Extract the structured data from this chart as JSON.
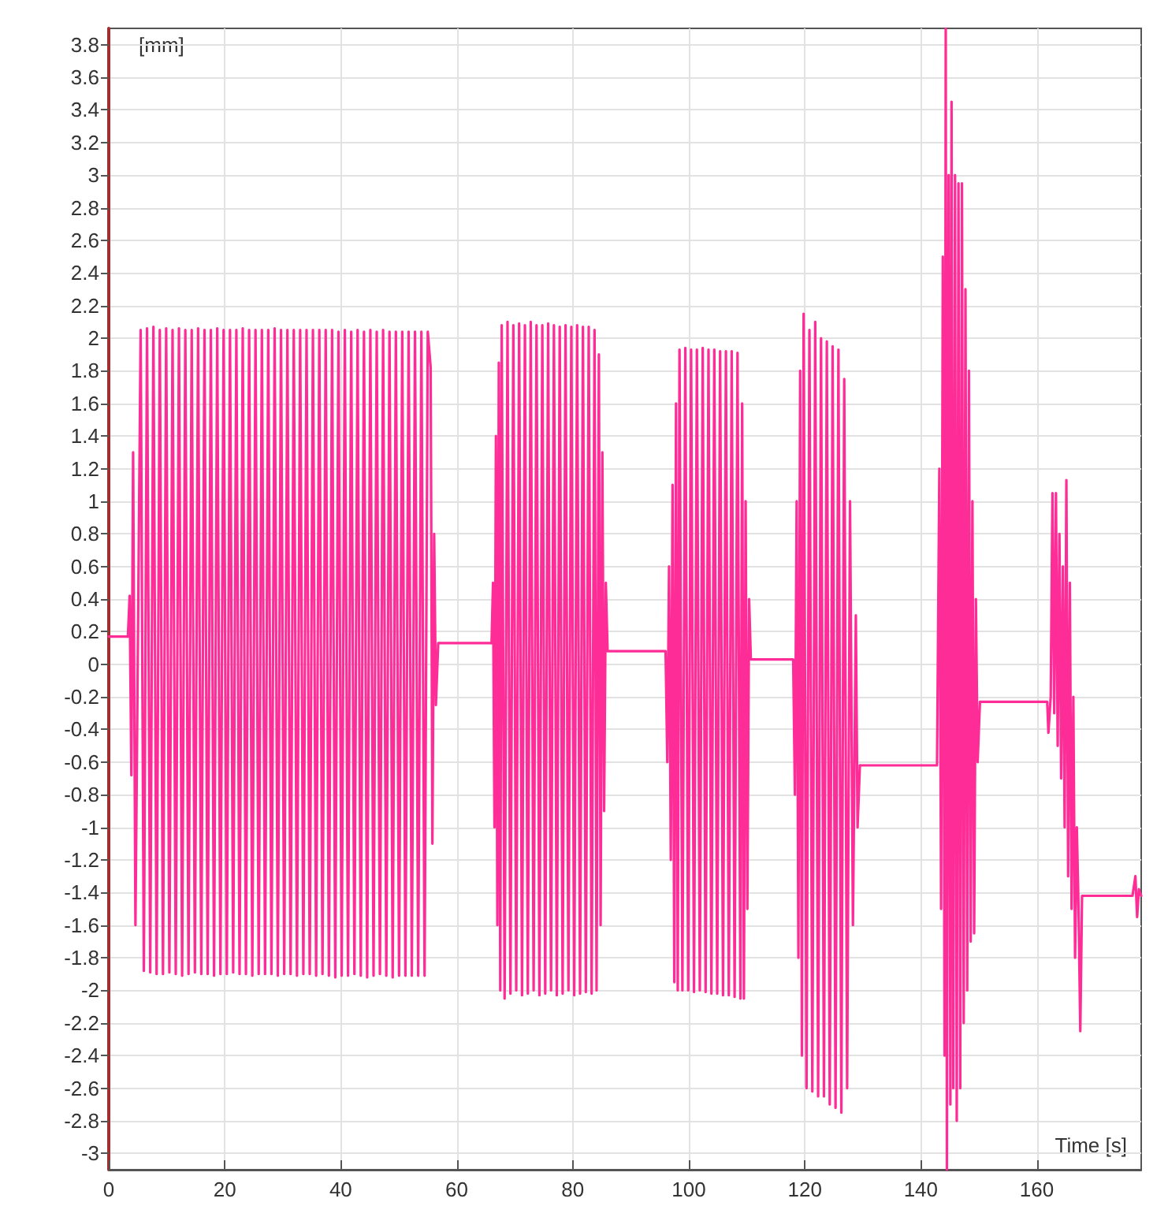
{
  "chart_data": {
    "type": "line",
    "xlabel": "Time [s]",
    "ylabel": "[mm]",
    "xlim": [
      0,
      178
    ],
    "xticks": [
      0,
      20,
      40,
      60,
      80,
      100,
      120,
      140,
      160
    ],
    "ylim": [
      -3.1,
      3.9
    ],
    "yticks": [
      -3,
      -2.8,
      -2.6,
      -2.4,
      -2.2,
      -2,
      -1.8,
      -1.6,
      -1.4,
      -1.2,
      -1,
      -0.8,
      -0.6,
      -0.4,
      -0.2,
      0,
      0.2,
      0.4,
      0.6,
      0.8,
      1,
      1.2,
      1.4,
      1.6,
      1.8,
      2,
      2.2,
      2.4,
      2.6,
      2.8,
      3,
      3.2,
      3.4,
      3.6,
      3.8
    ],
    "grid": true,
    "marker": "none",
    "line_style": "solid",
    "series": [
      {
        "color": "#fe2c96",
        "x": [
          0,
          3.3,
          3.6,
          3.9,
          4.2,
          4.6,
          5.5,
          6.05,
          6.6,
          7.15,
          7.7,
          8.25,
          8.8,
          9.35,
          9.9,
          10.45,
          11,
          11.55,
          12.1,
          12.65,
          13.2,
          13.75,
          14.3,
          14.85,
          15.4,
          15.95,
          16.5,
          17.05,
          17.6,
          18.15,
          18.7,
          19.25,
          19.8,
          20.35,
          20.9,
          21.45,
          22,
          22.55,
          23.1,
          23.65,
          24.2,
          24.75,
          25.3,
          25.85,
          26.4,
          26.95,
          27.5,
          28.05,
          28.6,
          29.15,
          29.7,
          30.25,
          30.8,
          31.35,
          31.9,
          32.45,
          33,
          33.55,
          34.1,
          34.65,
          35.2,
          35.75,
          36.3,
          36.85,
          37.4,
          37.95,
          38.5,
          39.05,
          39.6,
          40.15,
          40.7,
          41.25,
          41.8,
          42.35,
          42.9,
          43.45,
          44,
          44.55,
          45.1,
          45.65,
          46.2,
          46.75,
          47.3,
          47.85,
          48.4,
          48.95,
          49.5,
          50.05,
          50.6,
          51.15,
          51.7,
          52.25,
          52.8,
          53.35,
          53.9,
          54.45,
          55,
          55.5,
          55.8,
          56.1,
          56.4,
          56.8,
          66
        ],
        "values": [
          0.17,
          0.17,
          0.42,
          -0.68,
          1.3,
          -1.6,
          2.05,
          -1.88,
          2.06,
          -1.89,
          2.07,
          -1.9,
          2.05,
          -1.9,
          2.06,
          -1.89,
          2.05,
          -1.9,
          2.06,
          -1.91,
          2.05,
          -1.9,
          2.05,
          -1.89,
          2.06,
          -1.9,
          2.05,
          -1.9,
          2.05,
          -1.91,
          2.06,
          -1.9,
          2.05,
          -1.9,
          2.05,
          -1.89,
          2.05,
          -1.9,
          2.06,
          -1.9,
          2.05,
          -1.91,
          2.05,
          -1.9,
          2.05,
          -1.9,
          2.05,
          -1.9,
          2.06,
          -1.91,
          2.05,
          -1.9,
          2.05,
          -1.9,
          2.05,
          -1.91,
          2.05,
          -1.9,
          2.05,
          -1.9,
          2.05,
          -1.91,
          2.05,
          -1.9,
          2.05,
          -1.91,
          2.05,
          -1.92,
          2.04,
          -1.91,
          2.05,
          -1.91,
          2.04,
          -1.9,
          2.05,
          -1.91,
          2.04,
          -1.92,
          2.05,
          -1.91,
          2.04,
          -1.9,
          2.05,
          -1.91,
          2.04,
          -1.92,
          2.04,
          -1.91,
          2.04,
          -1.91,
          2.04,
          -1.91,
          2.04,
          -1.91,
          2.04,
          -1.91,
          2.04,
          1.82,
          -1.1,
          0.8,
          -0.25,
          0.13,
          0.13
        ]
      },
      {
        "color": "#fe2c96",
        "x": [
          66,
          66.25,
          66.5,
          66.75,
          67,
          67.25,
          67.5,
          67.75,
          68.25,
          68.75,
          69.25,
          69.75,
          70.25,
          70.75,
          71.25,
          71.75,
          72.25,
          72.75,
          73.25,
          73.75,
          74.25,
          74.75,
          75.25,
          75.75,
          76.25,
          76.75,
          77.25,
          77.75,
          78.25,
          78.75,
          79.25,
          79.75,
          80.25,
          80.75,
          81.25,
          81.75,
          82.25,
          82.75,
          83.25,
          83.75,
          84.1,
          84.5,
          84.8,
          85.1,
          85.4,
          85.7,
          86,
          96,
          96.3,
          96.6,
          96.9,
          97.2,
          97.5,
          97.8,
          98.1,
          98.4,
          98.9,
          99.4,
          99.9,
          100.4,
          100.9,
          101.4,
          101.9,
          102.4,
          102.9,
          103.4,
          103.9,
          104.4,
          104.9,
          105.4,
          105.9,
          106.4,
          106.9,
          107.4,
          107.9,
          108.4,
          108.9,
          109.2,
          109.5,
          109.8,
          110.1,
          110.4,
          110.7,
          118,
          118.3,
          118.6,
          118.9,
          119.2,
          119.5,
          119.8,
          120.3,
          120.8,
          121.3,
          121.8,
          122.3,
          122.8,
          123.3,
          123.8,
          124.3,
          124.8,
          125.3,
          125.8,
          126.3,
          126.8,
          127.3,
          127.8,
          128.3,
          128.8,
          129.1,
          129.5
        ],
        "values": [
          0.13,
          0.5,
          -1.0,
          1.4,
          -1.6,
          1.85,
          -2.0,
          2.08,
          -2.05,
          2.1,
          -2.02,
          2.08,
          -2.0,
          2.09,
          -2.03,
          2.08,
          -2.02,
          2.1,
          -2.0,
          2.08,
          -2.03,
          2.08,
          -2.02,
          2.09,
          -2.0,
          2.08,
          -2.03,
          2.07,
          -2.02,
          2.08,
          -2.0,
          2.07,
          -2.03,
          2.08,
          -2.02,
          2.07,
          -2.01,
          2.07,
          -2.02,
          2.05,
          -2.0,
          1.9,
          -1.6,
          1.3,
          -0.9,
          0.5,
          0.08,
          0.08,
          -0.6,
          0.6,
          -1.2,
          1.1,
          -1.95,
          1.6,
          -2.0,
          1.93,
          -2.0,
          1.94,
          -2.0,
          1.93,
          -2.01,
          1.93,
          -2.0,
          1.94,
          -2.01,
          1.93,
          -2.02,
          1.93,
          -2.02,
          1.92,
          -2.03,
          1.92,
          -2.03,
          1.92,
          -2.04,
          1.91,
          -2.05,
          1.6,
          -2.05,
          1.0,
          -1.5,
          0.4,
          0.03,
          0.03,
          -0.8,
          1.0,
          -1.8,
          1.8,
          -2.4,
          2.15,
          -2.6,
          2.05,
          -2.62,
          2.1,
          -2.65,
          2.0,
          -2.65,
          1.98,
          -2.7,
          1.95,
          -2.72,
          1.93,
          -2.75,
          1.75,
          -2.6,
          1.0,
          -1.6,
          0.3,
          -1.0,
          -0.62
        ]
      },
      {
        "color": "#fe2c96",
        "x": [
          129.5,
          142.8,
          143.2,
          143.5,
          143.8,
          144.1,
          144.3,
          144.5,
          144.8,
          145.1,
          145.3,
          145.6,
          145.9,
          146.2,
          146.5,
          146.8,
          147.1,
          147.4,
          147.7,
          148,
          148.3,
          148.6,
          148.9,
          149.2,
          149.5,
          149.8,
          150.2,
          161.8,
          162,
          162.4,
          162.7,
          163,
          163.3,
          163.6,
          163.9,
          164.2,
          164.5,
          164.8,
          165.1,
          165.4,
          165.7,
          166,
          166.3,
          166.6,
          166.9,
          167.2,
          167.5,
          167.8,
          176.5,
          177,
          177.3,
          177.6,
          178
        ],
        "values": [
          -0.62,
          -0.62,
          1.2,
          -1.5,
          2.5,
          -2.4,
          3.9,
          -3.1,
          3.0,
          -2.7,
          3.45,
          -2.6,
          3.0,
          -2.8,
          2.95,
          -2.6,
          2.95,
          -2.2,
          2.3,
          -2.0,
          1.8,
          -1.7,
          1.0,
          -1.65,
          0.4,
          -0.6,
          -0.23,
          -0.23,
          -0.42,
          -0.2,
          1.05,
          -0.3,
          1.05,
          -0.5,
          0.8,
          -0.7,
          0.6,
          -1.0,
          1.13,
          -1.3,
          0.5,
          -1.5,
          -0.2,
          -1.8,
          -1.0,
          -1.5,
          -2.25,
          -1.42,
          -1.42,
          -1.3,
          -1.55,
          -1.38,
          -1.42
        ]
      }
    ]
  }
}
